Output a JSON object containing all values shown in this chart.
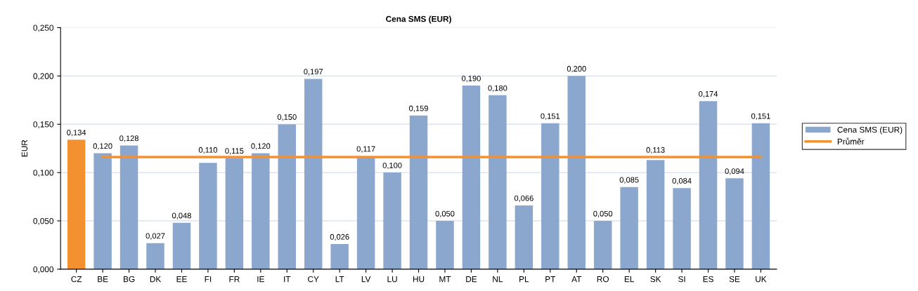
{
  "chart_data": {
    "type": "bar",
    "title": "Cena SMS (EUR)",
    "ylabel": "EUR",
    "categories": [
      "CZ",
      "BE",
      "BG",
      "DK",
      "EE",
      "FI",
      "FR",
      "IE",
      "IT",
      "CY",
      "LT",
      "LV",
      "LU",
      "HU",
      "MT",
      "DE",
      "NL",
      "PL",
      "PT",
      "AT",
      "RO",
      "EL",
      "SK",
      "SI",
      "ES",
      "SE",
      "UK"
    ],
    "series": [
      {
        "name": "Cena SMS (EUR)",
        "type": "bar",
        "color": "#8ba7cd",
        "colors": [
          "#f39131",
          "#8ba7cd",
          "#8ba7cd",
          "#8ba7cd",
          "#8ba7cd",
          "#8ba7cd",
          "#8ba7cd",
          "#8ba7cd",
          "#8ba7cd",
          "#8ba7cd",
          "#8ba7cd",
          "#8ba7cd",
          "#8ba7cd",
          "#8ba7cd",
          "#8ba7cd",
          "#8ba7cd",
          "#8ba7cd",
          "#8ba7cd",
          "#8ba7cd",
          "#8ba7cd",
          "#8ba7cd",
          "#8ba7cd",
          "#8ba7cd",
          "#8ba7cd",
          "#8ba7cd",
          "#8ba7cd",
          "#8ba7cd"
        ],
        "values": [
          0.134,
          0.12,
          0.128,
          0.027,
          0.048,
          0.11,
          0.115,
          0.12,
          0.15,
          0.197,
          0.026,
          0.117,
          0.1,
          0.159,
          0.05,
          0.19,
          0.18,
          0.066,
          0.151,
          0.2,
          0.05,
          0.085,
          0.113,
          0.084,
          0.174,
          0.094,
          0.151
        ],
        "value_labels": [
          "0,134",
          "0,120",
          "0,128",
          "0,027",
          "0,048",
          "0,110",
          "0,115",
          "0,120",
          "0,150",
          "0,197",
          "0,026",
          "0,117",
          "0,100",
          "0,159",
          "0,050",
          "0,190",
          "0,180",
          "0,066",
          "0,151",
          "0,200",
          "0,050",
          "0,085",
          "0,113",
          "0,084",
          "0,174",
          "0,094",
          "0,151"
        ]
      },
      {
        "name": "Průměr",
        "type": "line",
        "color": "#f39131",
        "values": [
          null,
          0.116,
          0.116,
          0.116,
          0.116,
          0.116,
          0.116,
          0.116,
          0.116,
          0.116,
          0.116,
          0.116,
          0.116,
          0.116,
          0.116,
          0.116,
          0.116,
          0.116,
          0.116,
          0.116,
          0.116,
          0.116,
          0.116,
          0.116,
          0.116,
          0.116,
          0.116
        ]
      }
    ],
    "ylim": [
      0,
      0.25
    ],
    "yticks": [
      {
        "value": 0,
        "label": "0,000"
      },
      {
        "value": 0.05,
        "label": "0,050"
      },
      {
        "value": 0.1,
        "label": "0,100"
      },
      {
        "value": 0.15,
        "label": "0,150"
      },
      {
        "value": 0.2,
        "label": "0,200"
      },
      {
        "value": 0.25,
        "label": "0,250"
      }
    ],
    "grid": "y",
    "legend": "right",
    "marker": "none",
    "line_style": "solid"
  }
}
